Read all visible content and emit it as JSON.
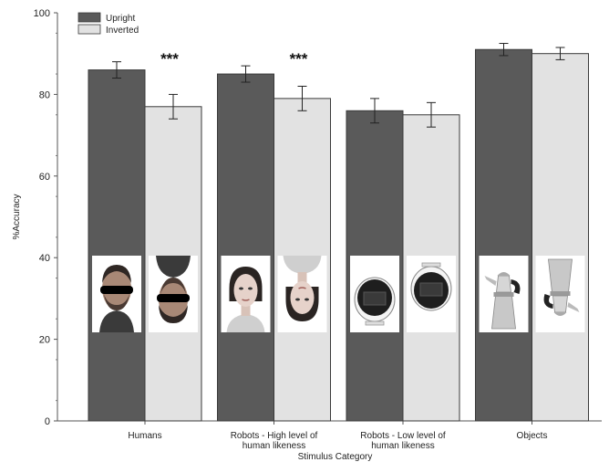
{
  "chart_data": {
    "type": "bar",
    "xlabel": "Stimulus Category",
    "ylabel": "%Accuracy",
    "ylim": [
      0,
      100
    ],
    "yticks": [
      0,
      20,
      40,
      60,
      80,
      100
    ],
    "grid": false,
    "legend_position": "top-left",
    "categories": [
      {
        "label_lines": [
          "Humans"
        ]
      },
      {
        "label_lines": [
          "Robots - High level of",
          "human likeness"
        ]
      },
      {
        "label_lines": [
          "Robots - Low level of",
          "human likeness"
        ]
      },
      {
        "label_lines": [
          "Objects"
        ]
      }
    ],
    "series": [
      {
        "name": "Upright",
        "color": "#5a5a5a",
        "values": [
          86,
          85,
          76,
          91
        ],
        "errors": [
          2,
          2,
          3,
          1.5
        ]
      },
      {
        "name": "Inverted",
        "color": "#e2e2e2",
        "values": [
          77,
          79,
          75,
          90
        ],
        "errors": [
          3,
          3,
          3,
          1.5
        ]
      }
    ],
    "annotations": [
      {
        "category_index": 0,
        "text": "***"
      },
      {
        "category_index": 1,
        "text": "***"
      }
    ],
    "stimulus_images": [
      {
        "category_index": 0,
        "series_index": 0,
        "icon": "face-upright-icon"
      },
      {
        "category_index": 0,
        "series_index": 1,
        "icon": "face-inverted-icon"
      },
      {
        "category_index": 1,
        "series_index": 0,
        "icon": "android-face-upright-icon"
      },
      {
        "category_index": 1,
        "series_index": 1,
        "icon": "android-face-inverted-icon"
      },
      {
        "category_index": 2,
        "series_index": 0,
        "icon": "round-robot-upright-icon"
      },
      {
        "category_index": 2,
        "series_index": 1,
        "icon": "round-robot-inverted-icon"
      },
      {
        "category_index": 3,
        "series_index": 0,
        "icon": "coffee-pot-upright-icon"
      },
      {
        "category_index": 3,
        "series_index": 1,
        "icon": "coffee-pot-inverted-icon"
      }
    ]
  }
}
